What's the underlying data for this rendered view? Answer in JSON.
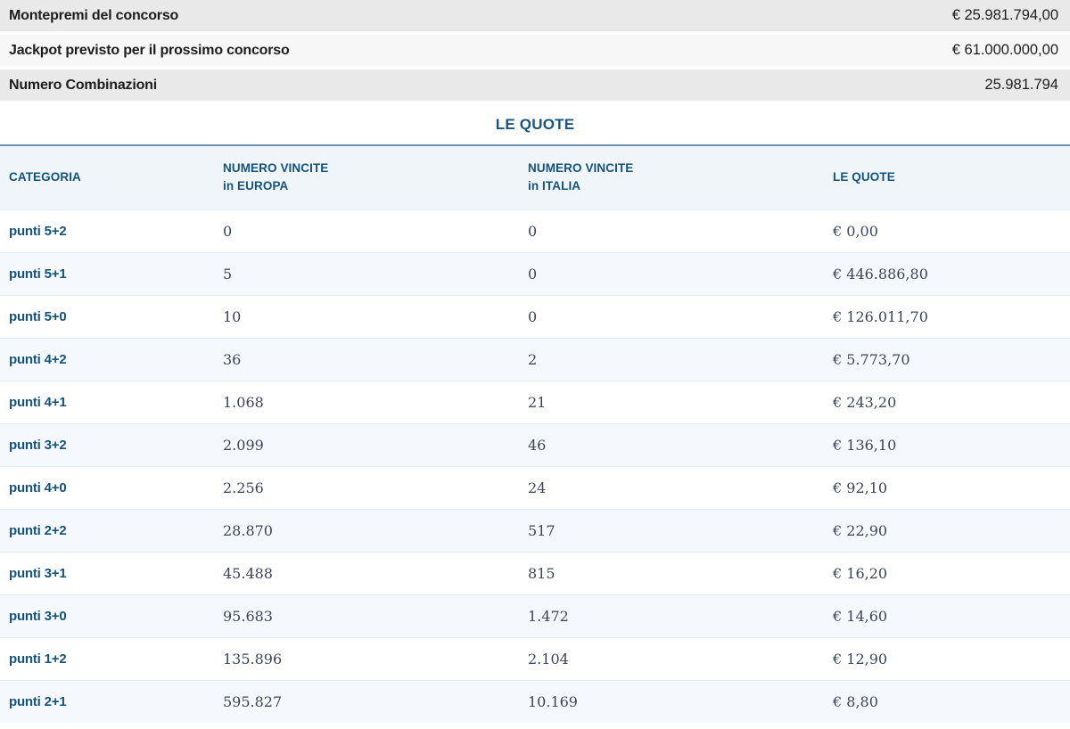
{
  "summary": {
    "rows": [
      {
        "label": "Montepremi del concorso",
        "value": "€ 25.981.794,00"
      },
      {
        "label": "Jackpot previsto per il prossimo concorso",
        "value": "€ 61.000.000,00"
      },
      {
        "label": "Numero Combinazioni",
        "value": "25.981.794"
      }
    ]
  },
  "section_title": "LE QUOTE",
  "table": {
    "headers": [
      {
        "line1": "CATEGORIA",
        "line2": ""
      },
      {
        "line1": "NUMERO VINCITE",
        "line2": "in EUROPA"
      },
      {
        "line1": "NUMERO VINCITE",
        "line2": "in ITALIA"
      },
      {
        "line1": "LE QUOTE",
        "line2": ""
      }
    ],
    "rows": [
      {
        "categoria": "punti 5+2",
        "vincite_europa": "0",
        "vincite_italia": "0",
        "quota": "€ 0,00"
      },
      {
        "categoria": "punti 5+1",
        "vincite_europa": "5",
        "vincite_italia": "0",
        "quota": "€ 446.886,80"
      },
      {
        "categoria": "punti 5+0",
        "vincite_europa": "10",
        "vincite_italia": "0",
        "quota": "€ 126.011,70"
      },
      {
        "categoria": "punti 4+2",
        "vincite_europa": "36",
        "vincite_italia": "2",
        "quota": "€ 5.773,70"
      },
      {
        "categoria": "punti 4+1",
        "vincite_europa": "1.068",
        "vincite_italia": "21",
        "quota": "€ 243,20"
      },
      {
        "categoria": "punti 3+2",
        "vincite_europa": "2.099",
        "vincite_italia": "46",
        "quota": "€ 136,10"
      },
      {
        "categoria": "punti 4+0",
        "vincite_europa": "2.256",
        "vincite_italia": "24",
        "quota": "€ 92,10"
      },
      {
        "categoria": "punti 2+2",
        "vincite_europa": "28.870",
        "vincite_italia": "517",
        "quota": "€ 22,90"
      },
      {
        "categoria": "punti 3+1",
        "vincite_europa": "45.488",
        "vincite_italia": "815",
        "quota": "€ 16,20"
      },
      {
        "categoria": "punti 3+0",
        "vincite_europa": "95.683",
        "vincite_italia": "1.472",
        "quota": "€ 14,60"
      },
      {
        "categoria": "punti 1+2",
        "vincite_europa": "135.896",
        "vincite_italia": "2.104",
        "quota": "€ 12,90"
      },
      {
        "categoria": "punti 2+1",
        "vincite_europa": "595.827",
        "vincite_italia": "10.169",
        "quota": "€ 8,80"
      }
    ]
  },
  "colors": {
    "accent_blue": "#15537f",
    "header_text_blue": "#14537d",
    "title_blue": "#1a5480",
    "table_top_border": "#6b93b0",
    "header_bg": "#f0f5fa",
    "alt_row_bg": "#f5f8fc",
    "summary_row_dark": "#e9e9e9",
    "summary_row_light": "#f7f7f7",
    "serif_number_color": "#3e4458"
  }
}
